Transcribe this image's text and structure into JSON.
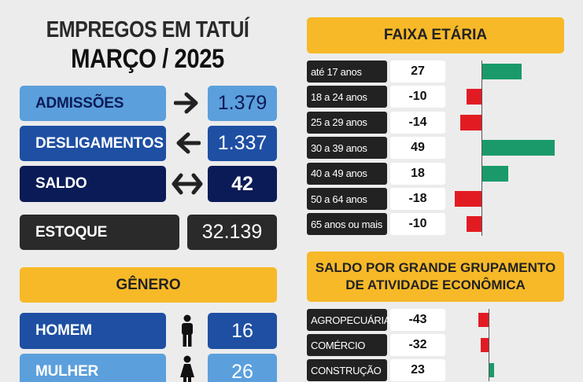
{
  "header": {
    "title_line1": "EMPREGOS EM TATUÍ",
    "title_line2": "MARÇO / 2025"
  },
  "summary": {
    "admissoes": {
      "label": "ADMISSÕES",
      "value": "1.379",
      "icon": "arrow-right-icon"
    },
    "desligamentos": {
      "label": "DESLIGAMENTOS",
      "value": "1.337",
      "icon": "arrow-left-icon"
    },
    "saldo": {
      "label": "SALDO",
      "value": "42",
      "icon": "double-arrow-icon"
    },
    "estoque": {
      "label": "ESTOQUE",
      "value": "32.139"
    }
  },
  "genero": {
    "title": "GÊNERO",
    "homem": {
      "label": "HOMEM",
      "value": "16",
      "icon": "man-icon"
    },
    "mulher": {
      "label": "MULHER",
      "value": "26",
      "icon": "woman-icon"
    }
  },
  "faixa_etaria_title": "FAIXA ETÁRIA",
  "setor_title_line1": "SALDO POR GRANDE GRUPAMENTO",
  "setor_title_line2": "DE ATIVIDADE ECONÔMICA",
  "colors": {
    "positive": "#1a9a6a",
    "negative": "#e21b23",
    "yellow": "#f7b928",
    "light_blue": "#5b9fdc",
    "mid_blue": "#1e4fa3",
    "dark_navy": "#0b1b57",
    "dark": "#2a2a2a"
  },
  "chart_data": [
    {
      "type": "bar",
      "title": "FAIXA ETÁRIA",
      "categories": [
        "até 17 anos",
        "18 a 24 anos",
        "25 a 29 anos",
        "30 a 39 anos",
        "40 a 49 anos",
        "50 a 64 anos",
        "65 anos ou mais"
      ],
      "values": [
        27,
        -10,
        -14,
        49,
        18,
        -18,
        -10
      ],
      "orientation": "horizontal"
    },
    {
      "type": "bar",
      "title": "SALDO POR GRANDE GRUPAMENTO DE ATIVIDADE ECONÔMICA",
      "categories": [
        "AGROPECUÁRIA",
        "COMÉRCIO",
        "CONSTRUÇÃO"
      ],
      "values": [
        -43,
        -32,
        23
      ],
      "orientation": "horizontal"
    }
  ]
}
